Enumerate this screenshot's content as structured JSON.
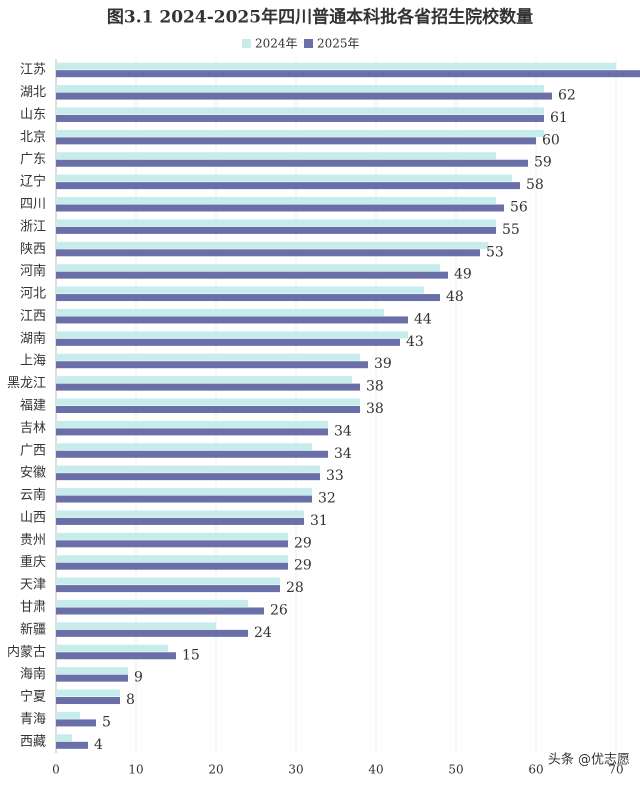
{
  "chart_data": {
    "type": "hbar",
    "title": "图3.1  2024-2025年四川普通本科批各省招生院校数量",
    "categories": [
      "江苏",
      "湖北",
      "山东",
      "北京",
      "广东",
      "辽宁",
      "四川",
      "浙江",
      "陕西",
      "河南",
      "河北",
      "江西",
      "湖南",
      "上海",
      "黑龙江",
      "福建",
      "吉林",
      "广西",
      "安徽",
      "云南",
      "山西",
      "贵州",
      "重庆",
      "天津",
      "甘肃",
      "新疆",
      "内蒙古",
      "海南",
      "宁夏",
      "青海",
      "西藏"
    ],
    "series": [
      {
        "name": "2024年",
        "color": "#c6ecec",
        "values": [
          70,
          61,
          61,
          61,
          55,
          57,
          55,
          55,
          54,
          48,
          46,
          41,
          44,
          38,
          37,
          38,
          34,
          32,
          33,
          32,
          31,
          29,
          29,
          28,
          24,
          20,
          14,
          9,
          8,
          3,
          2
        ]
      },
      {
        "name": "2025年",
        "color": "#6a6fa8",
        "values": [
          75,
          62,
          61,
          60,
          59,
          58,
          56,
          55,
          53,
          49,
          48,
          44,
          43,
          39,
          38,
          38,
          34,
          34,
          33,
          32,
          31,
          29,
          29,
          28,
          26,
          24,
          15,
          9,
          8,
          5,
          4
        ],
        "labels": true
      }
    ],
    "xlim": [
      0,
      70
    ],
    "xticks": [
      0,
      10,
      20,
      30,
      40,
      50,
      60,
      70
    ],
    "source": "头条 @优志愿"
  }
}
